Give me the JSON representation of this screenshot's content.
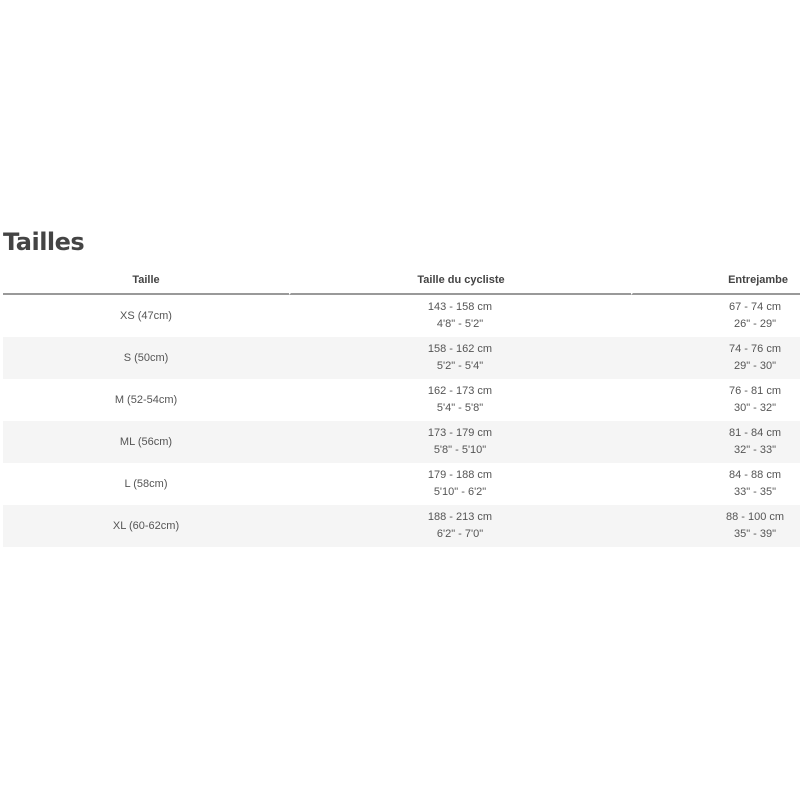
{
  "title": "Tailles",
  "headers": [
    "Taille",
    "Taille du cycliste",
    "Entrejambe"
  ],
  "rows": [
    {
      "size": "XS (47cm)",
      "height_cm": "143 - 158 cm",
      "height_in": "4'8\" - 5'2\"",
      "inseam_cm": "67 - 74 cm",
      "inseam_in": "26\" - 29\""
    },
    {
      "size": "S (50cm)",
      "height_cm": "158 - 162 cm",
      "height_in": "5'2\" - 5'4\"",
      "inseam_cm": "74 - 76 cm",
      "inseam_in": "29\" - 30\""
    },
    {
      "size": "M (52-54cm)",
      "height_cm": "162 - 173 cm",
      "height_in": "5'4\" - 5'8\"",
      "inseam_cm": "76 - 81 cm",
      "inseam_in": "30\" - 32\""
    },
    {
      "size": "ML (56cm)",
      "height_cm": "173 - 179 cm",
      "height_in": "5'8\" - 5'10\"",
      "inseam_cm": "81 - 84 cm",
      "inseam_in": "32\" - 33\""
    },
    {
      "size": "L (58cm)",
      "height_cm": "179 - 188 cm",
      "height_in": "5'10\" - 6'2\"",
      "inseam_cm": "84 - 88 cm",
      "inseam_in": "33\" - 35\""
    },
    {
      "size": "XL (60-62cm)",
      "height_cm": "188 - 213 cm",
      "height_in": "6'2\" - 7'0\"",
      "inseam_cm": "88 - 100 cm",
      "inseam_in": "35\" - 39\""
    }
  ]
}
